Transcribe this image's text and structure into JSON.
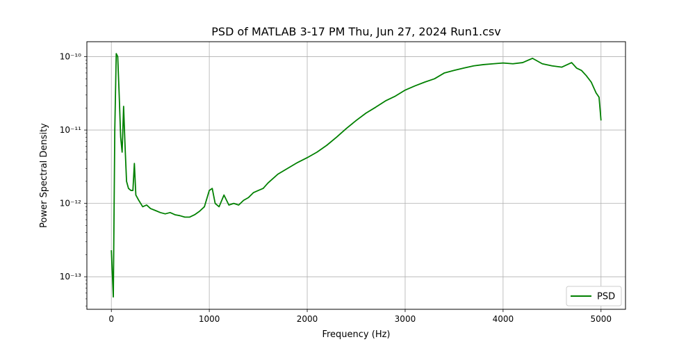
{
  "chart_data": {
    "type": "line",
    "title": "PSD of MATLAB 3-17 PM Thu, Jun 27, 2024 Run1.csv",
    "xlabel": "Frequency (Hz)",
    "ylabel": "Power Spectral Density",
    "xlim": [
      -250,
      5250
    ],
    "ylim": [
      3.6e-14,
      1.6e-10
    ],
    "yscale": "log",
    "grid": true,
    "legend_position": "lower-right",
    "x_ticks": [
      0,
      1000,
      2000,
      3000,
      4000,
      5000
    ],
    "x_tick_labels": [
      "0",
      "1000",
      "2000",
      "3000",
      "4000",
      "5000"
    ],
    "y_ticks": [
      1e-13,
      1e-12,
      1e-11,
      1e-10
    ],
    "y_tick_labels": [
      "10⁻¹³",
      "10⁻¹²",
      "10⁻¹¹",
      "10⁻¹⁰"
    ],
    "series": [
      {
        "name": "PSD",
        "color": "#008000",
        "points": [
          [
            0,
            2.3e-13
          ],
          [
            20,
            5.3e-14
          ],
          [
            35,
            1e-11
          ],
          [
            50,
            1.1e-10
          ],
          [
            65,
            1e-10
          ],
          [
            80,
            3e-11
          ],
          [
            95,
            8e-12
          ],
          [
            110,
            5e-12
          ],
          [
            125,
            2.1e-11
          ],
          [
            140,
            6e-12
          ],
          [
            155,
            2e-12
          ],
          [
            175,
            1.6e-12
          ],
          [
            200,
            1.5e-12
          ],
          [
            220,
            1.5e-12
          ],
          [
            235,
            3.5e-12
          ],
          [
            250,
            1.3e-12
          ],
          [
            280,
            1.1e-12
          ],
          [
            320,
            9e-13
          ],
          [
            360,
            9.5e-13
          ],
          [
            400,
            8.5e-13
          ],
          [
            450,
            8e-13
          ],
          [
            500,
            7.5e-13
          ],
          [
            550,
            7.2e-13
          ],
          [
            600,
            7.5e-13
          ],
          [
            650,
            7e-13
          ],
          [
            700,
            6.8e-13
          ],
          [
            750,
            6.5e-13
          ],
          [
            800,
            6.5e-13
          ],
          [
            850,
            7e-13
          ],
          [
            900,
            7.8e-13
          ],
          [
            950,
            9e-13
          ],
          [
            1000,
            1.5e-12
          ],
          [
            1030,
            1.6e-12
          ],
          [
            1060,
            1e-12
          ],
          [
            1100,
            9e-13
          ],
          [
            1150,
            1.3e-12
          ],
          [
            1200,
            9.5e-13
          ],
          [
            1250,
            1e-12
          ],
          [
            1300,
            9.5e-13
          ],
          [
            1350,
            1.1e-12
          ],
          [
            1400,
            1.2e-12
          ],
          [
            1450,
            1.4e-12
          ],
          [
            1500,
            1.5e-12
          ],
          [
            1550,
            1.6e-12
          ],
          [
            1600,
            1.9e-12
          ],
          [
            1700,
            2.5e-12
          ],
          [
            1800,
            3e-12
          ],
          [
            1900,
            3.6e-12
          ],
          [
            2000,
            4.2e-12
          ],
          [
            2100,
            5e-12
          ],
          [
            2200,
            6.2e-12
          ],
          [
            2300,
            8e-12
          ],
          [
            2400,
            1.05e-11
          ],
          [
            2500,
            1.35e-11
          ],
          [
            2600,
            1.7e-11
          ],
          [
            2700,
            2.05e-11
          ],
          [
            2800,
            2.5e-11
          ],
          [
            2900,
            2.9e-11
          ],
          [
            3000,
            3.5e-11
          ],
          [
            3100,
            4e-11
          ],
          [
            3200,
            4.5e-11
          ],
          [
            3300,
            5e-11
          ],
          [
            3400,
            6e-11
          ],
          [
            3500,
            6.5e-11
          ],
          [
            3600,
            7e-11
          ],
          [
            3700,
            7.5e-11
          ],
          [
            3800,
            7.8e-11
          ],
          [
            3900,
            8e-11
          ],
          [
            4000,
            8.2e-11
          ],
          [
            4100,
            8e-11
          ],
          [
            4200,
            8.3e-11
          ],
          [
            4300,
            9.5e-11
          ],
          [
            4400,
            8e-11
          ],
          [
            4500,
            7.5e-11
          ],
          [
            4600,
            7.2e-11
          ],
          [
            4700,
            8.3e-11
          ],
          [
            4750,
            7e-11
          ],
          [
            4800,
            6.5e-11
          ],
          [
            4850,
            5.5e-11
          ],
          [
            4900,
            4.5e-11
          ],
          [
            4950,
            3.2e-11
          ],
          [
            4980,
            2.8e-11
          ],
          [
            5000,
            1.35e-11
          ]
        ]
      }
    ]
  }
}
